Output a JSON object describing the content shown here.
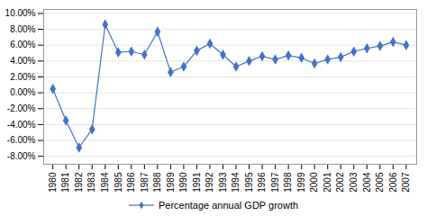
{
  "chart_data": {
    "type": "line",
    "x": [
      1980,
      1981,
      1982,
      1983,
      1984,
      1985,
      1986,
      1987,
      1988,
      1989,
      1990,
      1991,
      1992,
      1993,
      1994,
      1995,
      1996,
      1997,
      1998,
      1999,
      2000,
      2001,
      2002,
      2003,
      2004,
      2005,
      2006,
      2007
    ],
    "series": [
      {
        "name": "Percentage annual GDP growth",
        "color": "#4472C4",
        "marker": "diamond",
        "line_style": "solid",
        "values": [
          0.5,
          -3.5,
          -6.9,
          -4.6,
          8.6,
          5.1,
          5.2,
          4.8,
          7.7,
          2.6,
          3.3,
          5.3,
          6.2,
          4.8,
          3.3,
          4.0,
          4.6,
          4.2,
          4.7,
          4.4,
          3.7,
          4.2,
          4.5,
          5.2,
          5.6,
          5.9,
          6.4,
          6.0
        ]
      }
    ],
    "xlim": [
      1979.3,
      2007.8
    ],
    "xticks": [
      1980,
      1981,
      1982,
      1983,
      1984,
      1985,
      1986,
      1987,
      1988,
      1989,
      1990,
      1991,
      1992,
      1993,
      1994,
      1995,
      1996,
      1997,
      1998,
      1999,
      2000,
      2001,
      2002,
      2003,
      2004,
      2005,
      2006,
      2007
    ],
    "ylim": [
      -9.0,
      10.5
    ],
    "yticks": [
      {
        "value": -8.0,
        "label": "-8.00%"
      },
      {
        "value": -6.0,
        "label": "-6.00%"
      },
      {
        "value": -4.0,
        "label": "-4.00%"
      },
      {
        "value": -2.0,
        "label": "-2.00%"
      },
      {
        "value": 0.0,
        "label": "0.00%"
      },
      {
        "value": 2.0,
        "label": "2.00%"
      },
      {
        "value": 4.0,
        "label": "4.00%"
      },
      {
        "value": 6.0,
        "label": "6.00%"
      },
      {
        "value": 8.0,
        "label": "8.00%"
      },
      {
        "value": 10.0,
        "label": "10.00%"
      }
    ],
    "grid": "y",
    "legend": "bottom"
  }
}
